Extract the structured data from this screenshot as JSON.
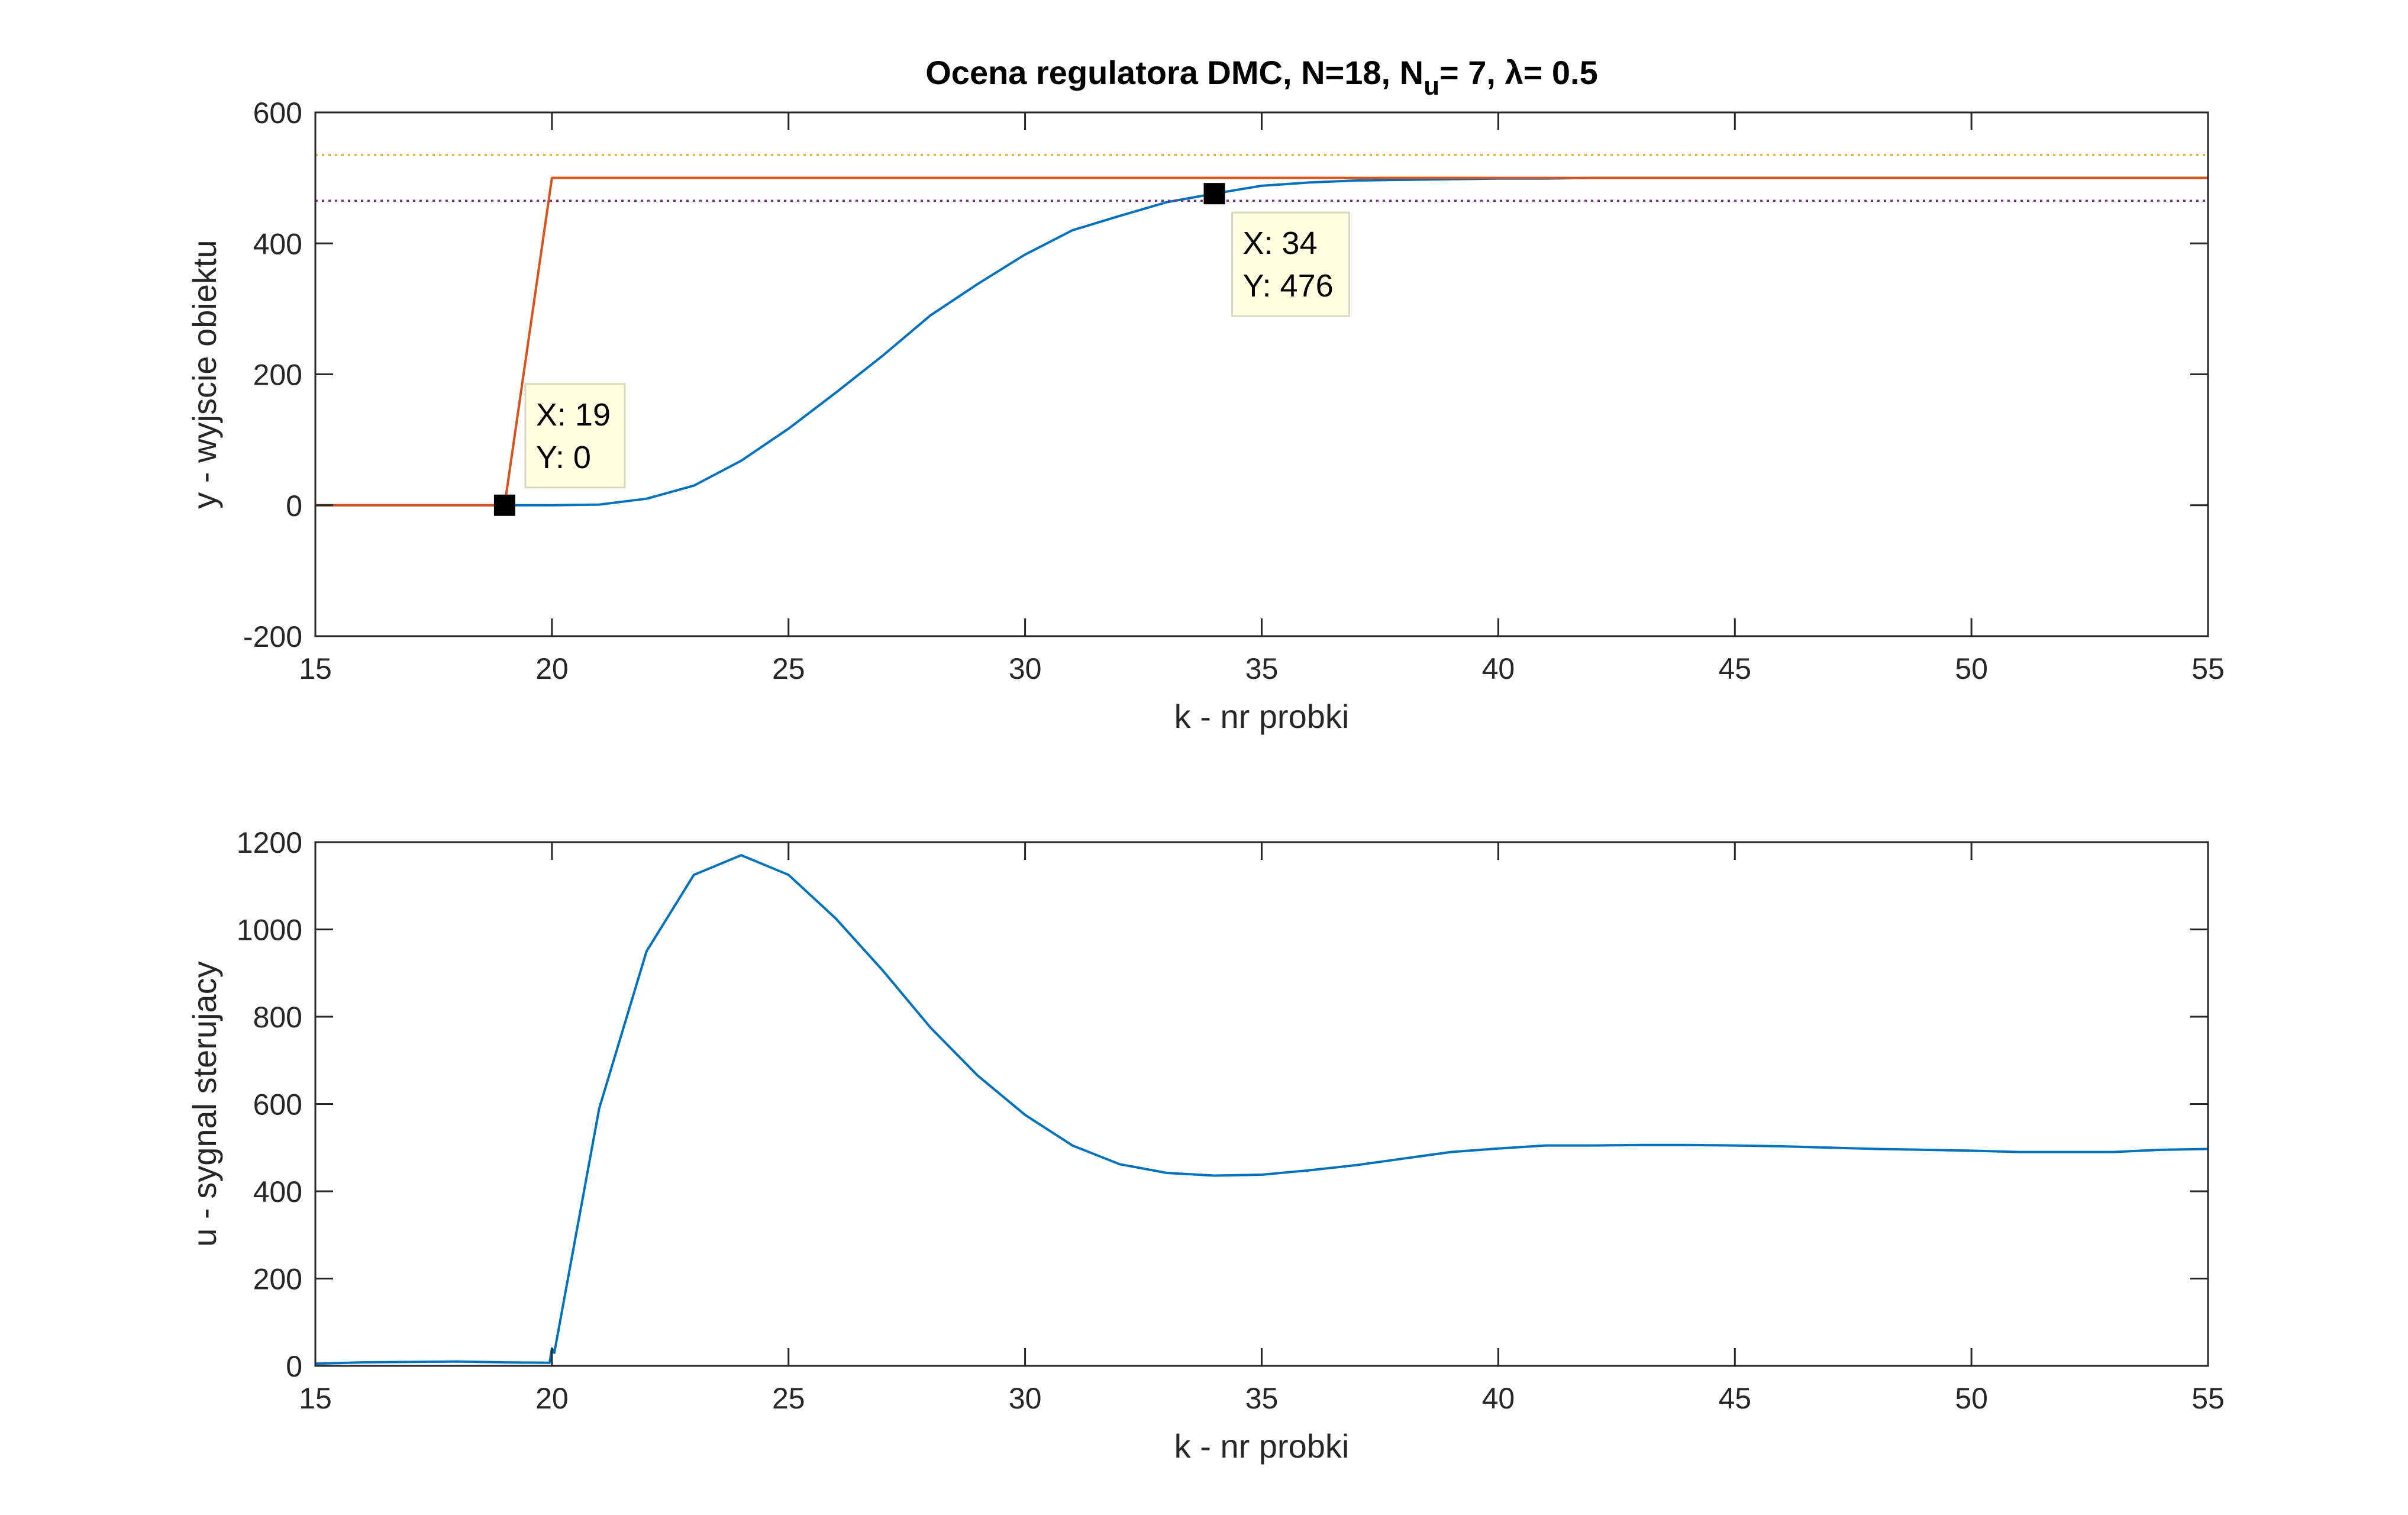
{
  "chart_data": [
    {
      "type": "line",
      "title": "Ocena regulatora DMC, N=18, N",
      "title_sub": "u",
      "title_rest": "= 7, λ= 0.5",
      "xlabel": "k - nr probki",
      "ylabel": "y - wyjscie obiektu",
      "xlim": [
        15,
        55
      ],
      "ylim": [
        -200,
        600
      ],
      "xticks": [
        15,
        20,
        25,
        30,
        35,
        40,
        45,
        50,
        55
      ],
      "yticks": [
        -200,
        0,
        200,
        400,
        600
      ],
      "grid": false,
      "series": [
        {
          "color": "#0072BD",
          "x": [
            15,
            16,
            17,
            18,
            19,
            20,
            21,
            22,
            23,
            24,
            25,
            26,
            27,
            28,
            29,
            30,
            31,
            32,
            33,
            34,
            35,
            36,
            37,
            38,
            39,
            40,
            41,
            42,
            43,
            44,
            45,
            46,
            47,
            48,
            49,
            50,
            51,
            52,
            53,
            54,
            55
          ],
          "y": [
            0,
            0,
            0,
            0,
            0,
            0,
            1,
            10,
            30,
            68,
            117,
            172,
            229,
            290,
            338,
            383,
            420,
            442,
            463,
            476,
            488,
            493,
            496,
            497,
            498,
            499,
            499,
            500,
            500,
            500,
            500,
            500,
            500,
            500,
            500,
            500,
            500,
            500,
            500,
            500,
            500
          ]
        },
        {
          "color": "#D95319",
          "x": [
            15,
            19,
            20,
            55
          ],
          "y": [
            0,
            0,
            500,
            500
          ]
        },
        {
          "color": "#EDB120",
          "style": "dotted",
          "x": [
            15,
            55
          ],
          "y": [
            535,
            535
          ]
        },
        {
          "color": "#7E2F8E",
          "style": "dotted",
          "x": [
            15,
            55
          ],
          "y": [
            465,
            465
          ]
        }
      ],
      "datatips": [
        {
          "x": 19,
          "y": 0,
          "label_x": "X: 19",
          "label_y": "Y: 0"
        },
        {
          "x": 34,
          "y": 476,
          "label_x": "X: 34",
          "label_y": "Y: 476"
        }
      ]
    },
    {
      "type": "line",
      "xlabel": "k - nr probki",
      "ylabel": "u - sygnal sterujacy",
      "xlim": [
        15,
        55
      ],
      "ylim": [
        0,
        1200
      ],
      "xticks": [
        15,
        20,
        25,
        30,
        35,
        40,
        45,
        50,
        55
      ],
      "yticks": [
        0,
        200,
        400,
        600,
        800,
        1000,
        1200
      ],
      "grid": false,
      "series": [
        {
          "color": "#0072BD",
          "x": [
            15,
            16,
            17,
            18,
            19,
            19.95,
            20,
            20.05,
            21,
            22,
            23,
            24,
            25,
            26,
            27,
            28,
            29,
            30,
            31,
            32,
            33,
            34,
            35,
            36,
            37,
            38,
            39,
            40,
            41,
            42,
            43,
            44,
            45,
            46,
            47,
            48,
            49,
            50,
            51,
            52,
            53,
            54,
            55
          ],
          "y": [
            5,
            8,
            9,
            10,
            8,
            7,
            40,
            30,
            590,
            950,
            1125,
            1170,
            1125,
            1025,
            905,
            775,
            665,
            575,
            505,
            462,
            442,
            436,
            438,
            448,
            460,
            475,
            490,
            498,
            505,
            505,
            506,
            506,
            505,
            503,
            500,
            497,
            495,
            493,
            490,
            490,
            490,
            495,
            497
          ]
        }
      ]
    }
  ]
}
